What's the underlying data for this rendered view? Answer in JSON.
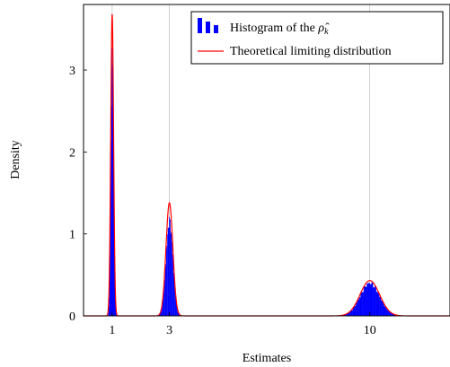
{
  "chart_data": {
    "type": "bar",
    "xlabel": "Estimates",
    "ylabel": "Density",
    "xlim": [
      0.0,
      12.8
    ],
    "ylim": [
      0,
      3.8
    ],
    "x_ticks": [
      1,
      3,
      10
    ],
    "x_tick_labels": [
      "1",
      "3",
      "10"
    ],
    "y_ticks": [
      0,
      1,
      2,
      3
    ],
    "y_tick_labels": [
      "0",
      "1",
      "2",
      "3"
    ],
    "grid": "vertical lines at x ticks",
    "legend_position": "top-right",
    "series": [
      {
        "name": "Histogram of the ρ̂k",
        "legend_main": "Histogram of the ",
        "legend_symbol": "ρ̂",
        "legend_sub": "k",
        "kind": "histogram",
        "color": "#0000ff",
        "components": [
          {
            "center": 1,
            "peak": 3.12,
            "sd": 0.044
          },
          {
            "center": 3,
            "peak": 1.15,
            "sd": 0.12
          },
          {
            "center": 10,
            "peak": 0.4,
            "sd": 0.34
          }
        ]
      },
      {
        "name": "Theoretical limiting distribution",
        "kind": "line",
        "color": "#ff0000",
        "components": [
          {
            "center": 1,
            "peak": 3.68,
            "sd": 0.05
          },
          {
            "center": 3,
            "peak": 1.38,
            "sd": 0.12
          },
          {
            "center": 10,
            "peak": 0.43,
            "sd": 0.34
          }
        ]
      }
    ]
  }
}
